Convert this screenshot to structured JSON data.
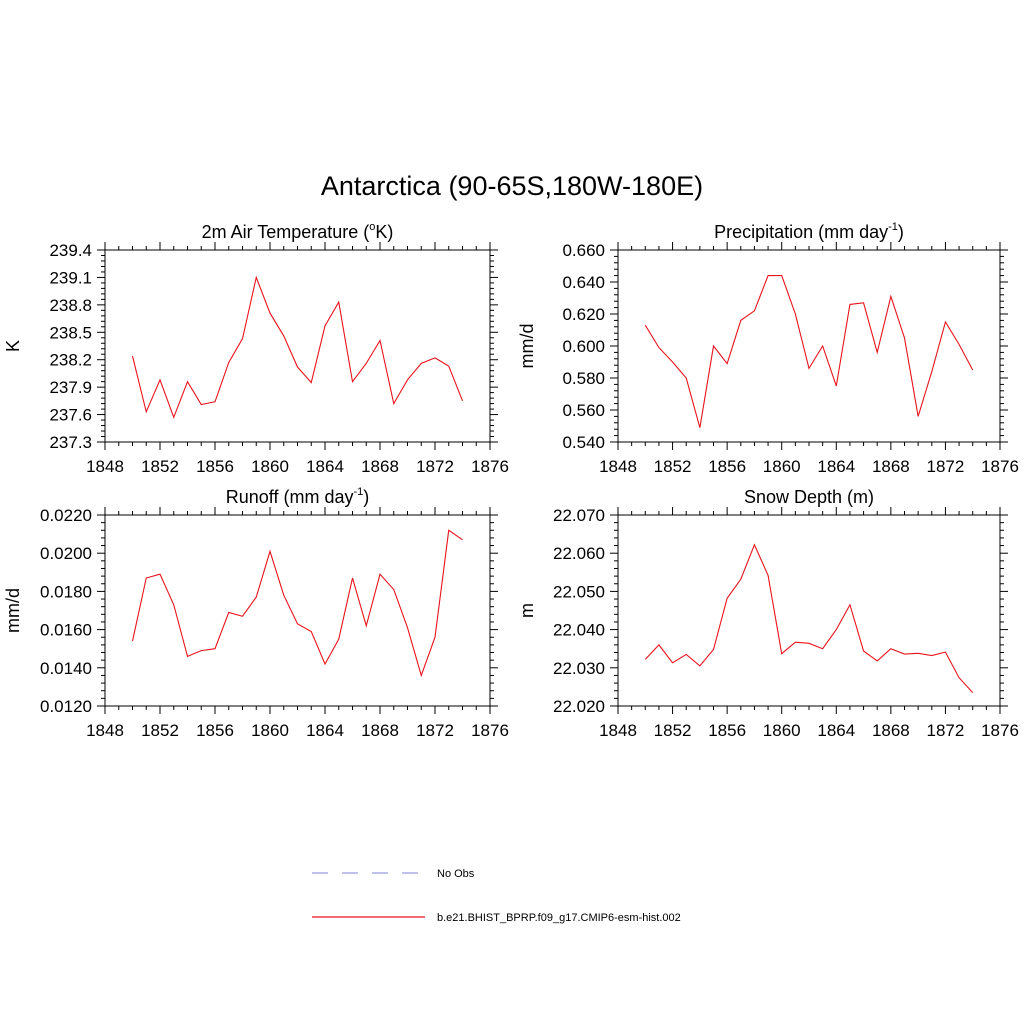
{
  "figure_title": "Antarctica (90-65S,180W-180E)",
  "legend": [
    {
      "label": "No Obs",
      "color": "#9a9ae8",
      "dash": true
    },
    {
      "label": "b.e21.BHIST_BPRP.f09_g17.CMIP6-esm-hist.002",
      "color": "#e8141b",
      "dash": false
    }
  ],
  "chart_data": [
    {
      "type": "line",
      "title": "2m Air Temperature (",
      "title_sup": "o",
      "title_after": "K)",
      "ylabel": "K",
      "xlim": [
        1848,
        1876
      ],
      "ylim": [
        237.3,
        239.4
      ],
      "xticks": [
        1848,
        1852,
        1856,
        1860,
        1864,
        1868,
        1872,
        1876
      ],
      "yticks": [
        "237.3",
        "237.6",
        "237.9",
        "238.2",
        "238.5",
        "238.8",
        "239.1",
        "239.4"
      ],
      "x": [
        1850,
        1851,
        1852,
        1853,
        1854,
        1855,
        1856,
        1857,
        1858,
        1859,
        1860,
        1861,
        1862,
        1863,
        1864,
        1865,
        1866,
        1867,
        1868,
        1869,
        1870,
        1871,
        1872,
        1873,
        1874
      ],
      "series": [
        {
          "color": "#e8141b",
          "values": [
            238.24,
            237.63,
            237.98,
            237.57,
            237.96,
            237.71,
            237.74,
            238.17,
            238.43,
            239.1,
            238.71,
            238.46,
            238.12,
            237.95,
            238.57,
            238.83,
            237.96,
            238.16,
            238.41,
            237.72,
            237.98,
            238.16,
            238.22,
            238.13,
            237.75
          ]
        }
      ]
    },
    {
      "type": "line",
      "title": "Precipitation (mm day",
      "title_sup": "-1",
      "title_after": ")",
      "ylabel": "mm/d",
      "xlim": [
        1848,
        1876
      ],
      "ylim": [
        0.54,
        0.66
      ],
      "xticks": [
        1848,
        1852,
        1856,
        1860,
        1864,
        1868,
        1872,
        1876
      ],
      "yticks": [
        "0.540",
        "0.560",
        "0.580",
        "0.600",
        "0.620",
        "0.640",
        "0.660"
      ],
      "x": [
        1850,
        1851,
        1852,
        1853,
        1854,
        1855,
        1856,
        1857,
        1858,
        1859,
        1860,
        1861,
        1862,
        1863,
        1864,
        1865,
        1866,
        1867,
        1868,
        1869,
        1870,
        1871,
        1872,
        1873,
        1874
      ],
      "series": [
        {
          "color": "#e8141b",
          "values": [
            0.613,
            0.599,
            0.59,
            0.58,
            0.549,
            0.6,
            0.589,
            0.616,
            0.622,
            0.644,
            0.644,
            0.62,
            0.586,
            0.6,
            0.575,
            0.626,
            0.627,
            0.596,
            0.631,
            0.605,
            0.556,
            0.584,
            0.615,
            0.601,
            0.585
          ]
        }
      ]
    },
    {
      "type": "line",
      "title": "Runoff (mm day",
      "title_sup": "-1",
      "title_after": ")",
      "ylabel": "mm/d",
      "xlim": [
        1848,
        1876
      ],
      "ylim": [
        0.012,
        0.022
      ],
      "xticks": [
        1848,
        1852,
        1856,
        1860,
        1864,
        1868,
        1872,
        1876
      ],
      "yticks": [
        "0.0120",
        "0.0140",
        "0.0160",
        "0.0180",
        "0.0200",
        "0.0220"
      ],
      "x": [
        1850,
        1851,
        1852,
        1853,
        1854,
        1855,
        1856,
        1857,
        1858,
        1859,
        1860,
        1861,
        1862,
        1863,
        1864,
        1865,
        1866,
        1867,
        1868,
        1869,
        1870,
        1871,
        1872,
        1873,
        1874
      ],
      "series": [
        {
          "color": "#e8141b",
          "values": [
            0.0154,
            0.0187,
            0.0189,
            0.0173,
            0.0146,
            0.0149,
            0.015,
            0.0169,
            0.0167,
            0.0177,
            0.0201,
            0.0178,
            0.0163,
            0.0159,
            0.0142,
            0.0155,
            0.0187,
            0.0162,
            0.0189,
            0.0181,
            0.0161,
            0.0136,
            0.0156,
            0.0212,
            0.0207
          ]
        }
      ]
    },
    {
      "type": "line",
      "title": "Snow Depth (m)",
      "title_sup": "",
      "title_after": "",
      "ylabel": "m",
      "xlim": [
        1848,
        1876
      ],
      "ylim": [
        22.02,
        22.07
      ],
      "xticks": [
        1848,
        1852,
        1856,
        1860,
        1864,
        1868,
        1872,
        1876
      ],
      "yticks": [
        "22.020",
        "22.030",
        "22.040",
        "22.050",
        "22.060",
        "22.070"
      ],
      "x": [
        1850,
        1851,
        1852,
        1853,
        1854,
        1855,
        1856,
        1857,
        1858,
        1859,
        1860,
        1861,
        1862,
        1863,
        1864,
        1865,
        1866,
        1867,
        1868,
        1869,
        1870,
        1871,
        1872,
        1873,
        1874
      ],
      "series": [
        {
          "color": "#e8141b",
          "values": [
            22.0322,
            22.036,
            22.0313,
            22.0335,
            22.0305,
            22.0348,
            22.0482,
            22.0532,
            22.0622,
            22.0542,
            22.0337,
            22.0367,
            22.0364,
            22.035,
            22.04,
            22.0465,
            22.0344,
            22.0318,
            22.035,
            22.0336,
            22.0338,
            22.0332,
            22.0341,
            22.0274,
            22.0235
          ]
        }
      ]
    }
  ]
}
